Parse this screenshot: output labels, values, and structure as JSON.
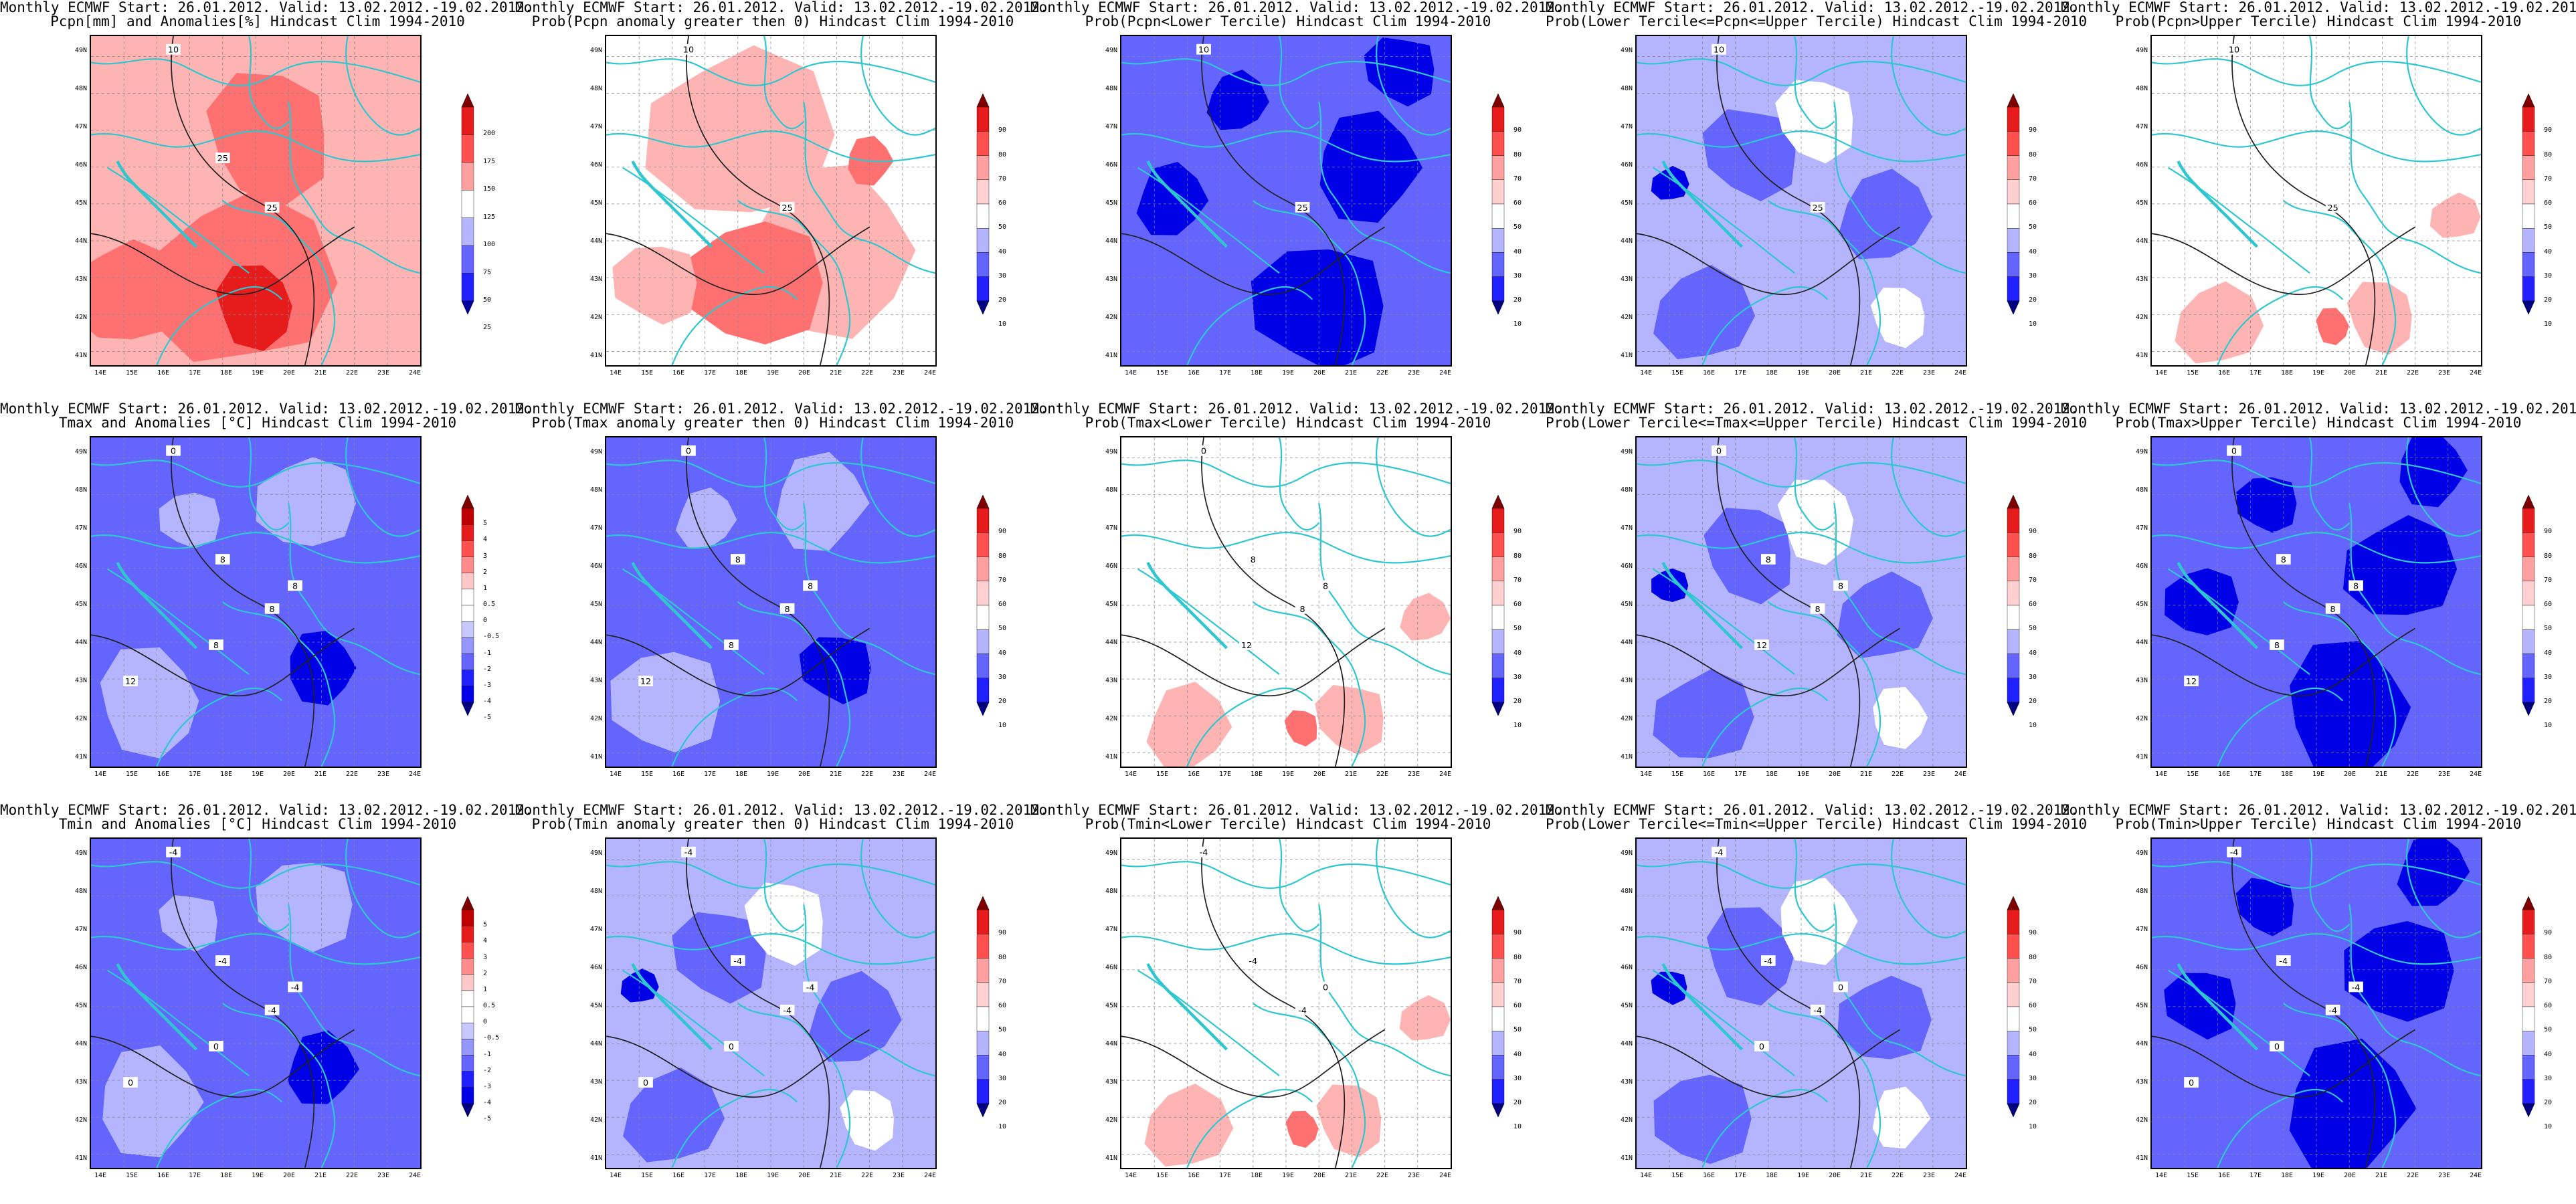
{
  "title_line1": "Monthly ECMWF Start: 26.01.2012. Valid: 13.02.2012.-19.02.2012.",
  "lat_labels": [
    "49N",
    "48N",
    "47N",
    "46N",
    "45N",
    "44N",
    "43N",
    "42N",
    "41N"
  ],
  "lon_labels": [
    "14E",
    "15E",
    "16E",
    "17E",
    "18E",
    "19E",
    "20E",
    "21E",
    "22E",
    "23E",
    "24E"
  ],
  "colors": {
    "border_cyan": "#2fc7cf",
    "blue_dark": "#0000e6",
    "blue_mid": "#6464ff",
    "blue_light": "#b4b4ff",
    "red_light": "#ffb4b4",
    "red_mid": "#ff7070",
    "red_dark": "#e61c1c"
  },
  "colorbars": {
    "pcpn_anom": {
      "labels": [
        "200",
        "175",
        "150",
        "125",
        "100",
        "75",
        "50",
        "25"
      ]
    },
    "temp_anom": {
      "labels": [
        "5",
        "4",
        "3",
        "2",
        "1",
        "0.5",
        "0",
        "-0.5",
        "-1",
        "-2",
        "-3",
        "-4",
        "-5"
      ]
    },
    "prob": {
      "labels": [
        "90",
        "80",
        "70",
        "60",
        "50",
        "40",
        "30",
        "20",
        "10"
      ]
    }
  },
  "panels": [
    {
      "line2": "Pcpn[mm] and Anomalies[%] Hindcast Clim 1994-2010",
      "bar": "pcpn_anom",
      "scheme": "red",
      "contour_labels": [
        "10",
        "25",
        "25"
      ]
    },
    {
      "line2": "Prob(Pcpn anomaly greater then 0) Hindcast Clim 1994-2010",
      "bar": "prob",
      "scheme": "light-red",
      "contour_labels": [
        "10",
        "25"
      ]
    },
    {
      "line2": "Prob(Pcpn<Lower Tercile) Hindcast Clim 1994-2010",
      "bar": "prob",
      "scheme": "dark-blue",
      "contour_labels": [
        "10",
        "25"
      ]
    },
    {
      "line2": "Prob(Lower Tercile<=Pcpn<=Upper Tercile) Hindcast Clim 1994-2010",
      "bar": "prob",
      "scheme": "mixed-blue",
      "contour_labels": [
        "10",
        "25"
      ]
    },
    {
      "line2": "Prob(Pcpn>Upper Tercile) Hindcast Clim 1994-2010",
      "bar": "prob",
      "scheme": "white-red",
      "contour_labels": [
        "10",
        "25"
      ]
    },
    {
      "line2": "Tmax and Anomalies [°C] Hindcast Clim 1994-2010",
      "bar": "temp_anom",
      "scheme": "blue",
      "contour_labels": [
        "0",
        "8",
        "8",
        "8",
        "8",
        "12"
      ]
    },
    {
      "line2": "Prob(Tmax anomaly greater then 0) Hindcast Clim 1994-2010",
      "bar": "prob",
      "scheme": "blue",
      "contour_labels": [
        "0",
        "8",
        "8",
        "8",
        "8",
        "12"
      ]
    },
    {
      "line2": "Prob(Tmax<Lower Tercile) Hindcast Clim 1994-2010",
      "bar": "prob",
      "scheme": "white-red",
      "contour_labels": [
        "0",
        "8",
        "8",
        "8",
        "12"
      ]
    },
    {
      "line2": "Prob(Lower Tercile<=Tmax<=Upper Tercile) Hindcast Clim 1994-2010",
      "bar": "prob",
      "scheme": "mixed-blue",
      "contour_labels": [
        "0",
        "8",
        "8",
        "8",
        "12"
      ]
    },
    {
      "line2": "Prob(Tmax>Upper Tercile) Hindcast Clim 1994-2010",
      "bar": "prob",
      "scheme": "dark-blue",
      "contour_labels": [
        "0",
        "8",
        "8",
        "8",
        "8",
        "12"
      ]
    },
    {
      "line2": "Tmin and Anomalies [°C] Hindcast Clim 1994-2010",
      "bar": "temp_anom",
      "scheme": "blue",
      "contour_labels": [
        "-4",
        "-4",
        "-4",
        "-4",
        "0",
        "0"
      ]
    },
    {
      "line2": "Prob(Tmin anomaly greater then 0) Hindcast Clim 1994-2010",
      "bar": "prob",
      "scheme": "mixed-blue",
      "contour_labels": [
        "-4",
        "-4",
        "-4",
        "-4",
        "0",
        "0"
      ]
    },
    {
      "line2": "Prob(Tmin<Lower Tercile) Hindcast Clim 1994-2010",
      "bar": "prob",
      "scheme": "white-red",
      "contour_labels": [
        "-4",
        "-4",
        "-4",
        "0"
      ]
    },
    {
      "line2": "Prob(Lower Tercile<=Tmin<=Upper Tercile) Hindcast Clim 1994-2010",
      "bar": "prob",
      "scheme": "mixed-blue",
      "contour_labels": [
        "-4",
        "-4",
        "-4",
        "0",
        "0"
      ]
    },
    {
      "line2": "Prob(Tmin>Upper Tercile) Hindcast Clim 1994-2010",
      "bar": "prob",
      "scheme": "dark-blue",
      "contour_labels": [
        "-4",
        "-4",
        "-4",
        "-4",
        "0",
        "0"
      ]
    }
  ]
}
